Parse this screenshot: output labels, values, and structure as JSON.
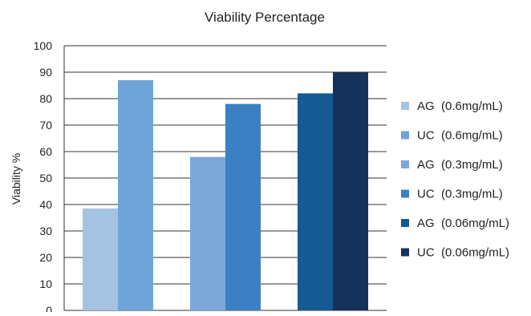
{
  "chart_data": {
    "type": "bar",
    "title": "Viability Percentage",
    "xlabel": "",
    "ylabel": "Viability %",
    "ylim": [
      0,
      100
    ],
    "yticks": [
      "0",
      "10",
      "20",
      "30",
      "40",
      "50",
      "60",
      "70",
      "80",
      "90",
      "100"
    ],
    "grid": true,
    "legend_position": "right",
    "series": [
      {
        "name": "AG  (0.6mg/mL)",
        "value": 38.5,
        "color": "#a4c3e3"
      },
      {
        "name": "UC  (0.6mg/mL)",
        "value": 87,
        "color": "#6fa4d9"
      },
      {
        "name": "AG  (0.3mg/mL)",
        "value": 58,
        "color": "#7ba8d8"
      },
      {
        "name": "UC  (0.3mg/mL)",
        "value": 78,
        "color": "#3b80c2"
      },
      {
        "name": "AG  (0.06mg/mL)",
        "value": 82,
        "color": "#155a92"
      },
      {
        "name": "UC  (0.06mg/mL)",
        "value": 90,
        "color": "#17325a"
      }
    ],
    "groups": [
      {
        "series_index": [
          0,
          1
        ]
      },
      {
        "series_index": [
          2,
          3
        ]
      },
      {
        "series_index": [
          4,
          5
        ]
      }
    ]
  }
}
